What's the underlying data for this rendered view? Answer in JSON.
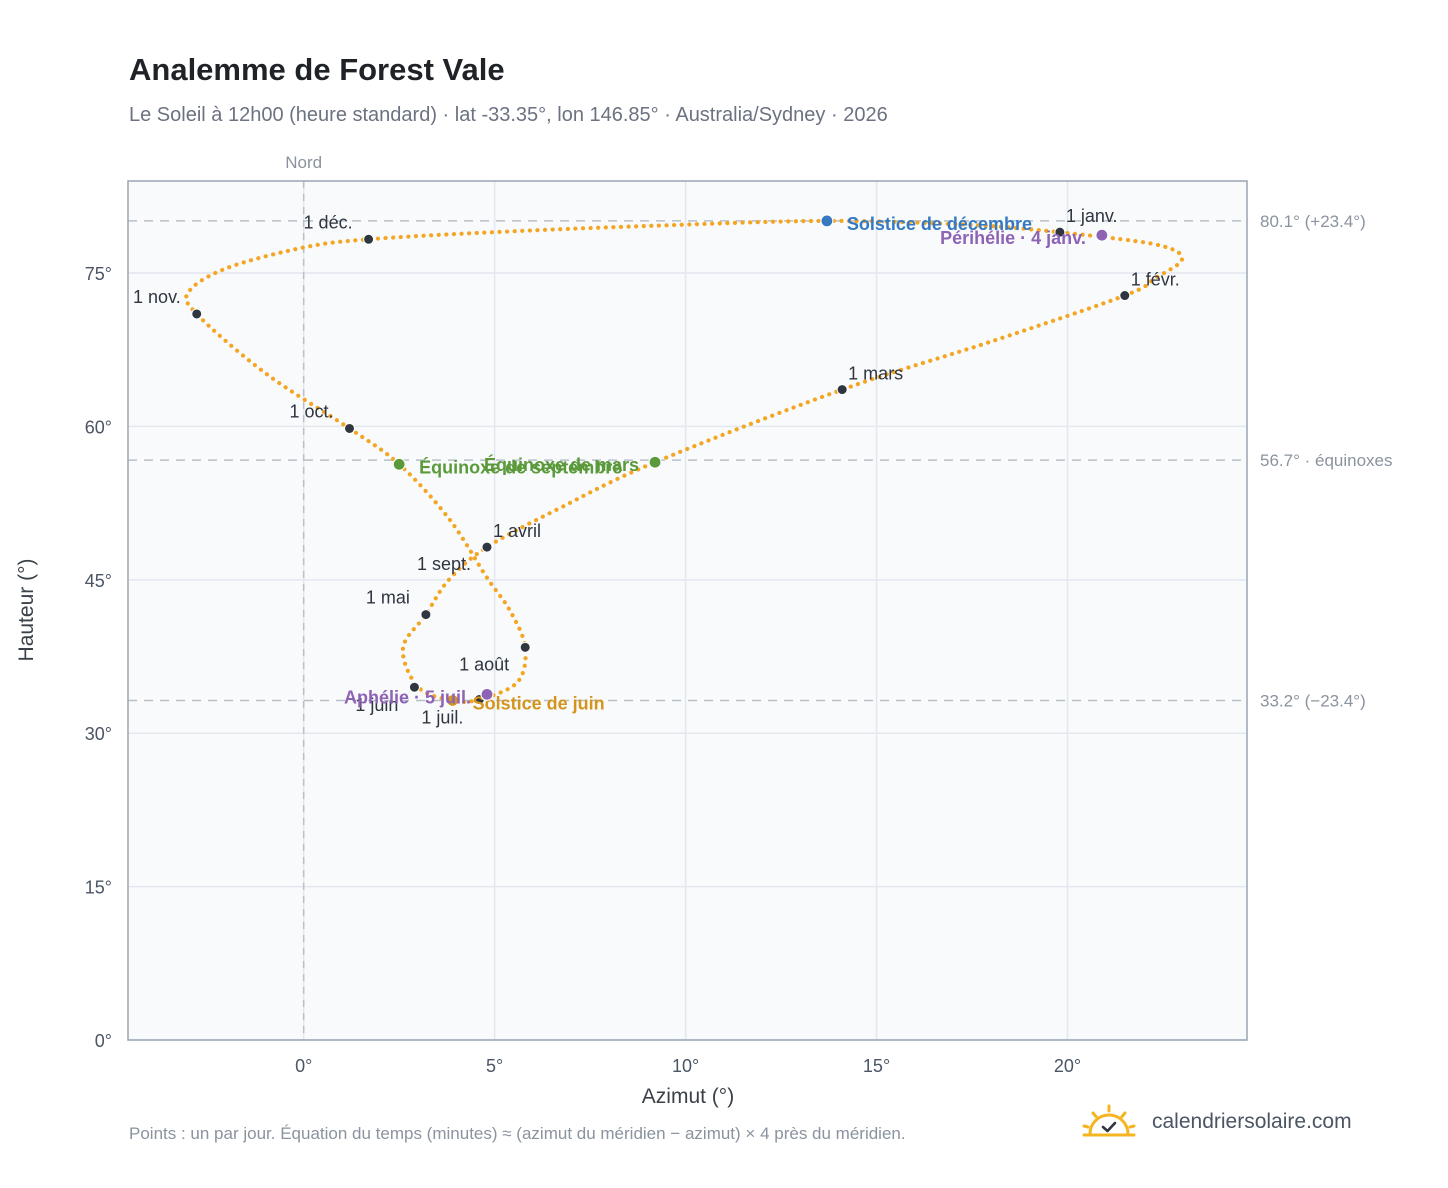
{
  "title": "Analemme de Forest Vale",
  "subtitle": "Le Soleil à 12h00 (heure standard) · lat -33.35°, lon 146.85° · Australia/Sydney · 2026",
  "footnote": "Points : un par jour. Équation du temps (minutes) ≈ (azimut du méridien − azimut) × 4 près du méridien.",
  "brand": {
    "name": "calendriersolaire.com",
    "logo_icon": "sun-check-icon"
  },
  "colors": {
    "path": "#f4a623",
    "month_marker": "#2f3640",
    "december_solstice": "#3579c2",
    "june_solstice": "#d4951c",
    "equinox": "#5a9a3a",
    "apsis": "#8e63b5",
    "reference_line": "#b8c0c8",
    "plot_background": "#f8fafc",
    "frame": "#9aa5b1"
  },
  "chart_data": {
    "type": "scatter",
    "xlabel": "Azimut (°)",
    "ylabel": "Hauteur (°)",
    "xlim": [
      -4.6,
      24.7
    ],
    "ylim": [
      0,
      84
    ],
    "x_ticks": [
      0,
      5,
      10,
      15,
      20
    ],
    "x_tick_labels": [
      "0°",
      "5°",
      "10°",
      "15°",
      "20°"
    ],
    "y_ticks": [
      0,
      15,
      30,
      45,
      60,
      75
    ],
    "y_tick_labels": [
      "0°",
      "15°",
      "30°",
      "45°",
      "60°",
      "75°"
    ],
    "grid": true,
    "north_line": {
      "x": 0,
      "label": "Nord"
    },
    "reference_lines": [
      {
        "y": 80.1,
        "label": "80.1° (+23.4°)"
      },
      {
        "y": 56.7,
        "label": "56.7° · équinoxes"
      },
      {
        "y": 33.2,
        "label": "33.2° (−23.4°)"
      }
    ],
    "analemma_path": [
      {
        "x": 19.8,
        "y": 79.0
      },
      {
        "x": 22.3,
        "y": 77.8
      },
      {
        "x": 23.0,
        "y": 76.4
      },
      {
        "x": 22.3,
        "y": 74.5
      },
      {
        "x": 21.5,
        "y": 72.8
      },
      {
        "x": 18.0,
        "y": 68.3
      },
      {
        "x": 14.1,
        "y": 63.6
      },
      {
        "x": 9.2,
        "y": 56.5
      },
      {
        "x": 6.7,
        "y": 52.0
      },
      {
        "x": 4.8,
        "y": 48.2
      },
      {
        "x": 3.8,
        "y": 45.0
      },
      {
        "x": 3.2,
        "y": 41.6
      },
      {
        "x": 2.6,
        "y": 38.3
      },
      {
        "x": 3.0,
        "y": 34.5
      },
      {
        "x": 3.9,
        "y": 33.2
      },
      {
        "x": 4.6,
        "y": 33.3
      },
      {
        "x": 5.6,
        "y": 35.0
      },
      {
        "x": 5.8,
        "y": 38.4
      },
      {
        "x": 5.4,
        "y": 42.0
      },
      {
        "x": 4.8,
        "y": 45.2
      },
      {
        "x": 3.8,
        "y": 51.0
      },
      {
        "x": 2.5,
        "y": 56.3
      },
      {
        "x": 1.2,
        "y": 59.8
      },
      {
        "x": -1.0,
        "y": 65.2
      },
      {
        "x": -2.8,
        "y": 71.0
      },
      {
        "x": -3.0,
        "y": 73.2
      },
      {
        "x": -2.0,
        "y": 75.5
      },
      {
        "x": 0.0,
        "y": 77.5
      },
      {
        "x": 1.7,
        "y": 78.3
      },
      {
        "x": 5.0,
        "y": 79.0
      },
      {
        "x": 9.0,
        "y": 79.6
      },
      {
        "x": 13.7,
        "y": 80.1
      },
      {
        "x": 17.5,
        "y": 79.7
      },
      {
        "x": 19.8,
        "y": 79.0
      }
    ],
    "month_markers": [
      {
        "label": "1 janv.",
        "x": 19.8,
        "y": 79.0,
        "anchor": "right"
      },
      {
        "label": "1 févr.",
        "x": 21.5,
        "y": 72.8,
        "anchor": "right"
      },
      {
        "label": "1 mars",
        "x": 14.1,
        "y": 63.6,
        "anchor": "right"
      },
      {
        "label": "1 avril",
        "x": 4.8,
        "y": 48.2,
        "anchor": "right"
      },
      {
        "label": "1 mai",
        "x": 3.2,
        "y": 41.6,
        "anchor": "left"
      },
      {
        "label": "1 juin",
        "x": 2.9,
        "y": 34.5,
        "anchor": "below-left"
      },
      {
        "label": "1 juil.",
        "x": 4.6,
        "y": 33.3,
        "anchor": "below-left"
      },
      {
        "label": "1 août",
        "x": 5.8,
        "y": 38.4,
        "anchor": "left-low"
      },
      {
        "label": "1 sept.",
        "x": 4.8,
        "y": 48.2,
        "anchor": "left-low"
      },
      {
        "label": "1 oct.",
        "x": 1.2,
        "y": 59.8,
        "anchor": "left"
      },
      {
        "label": "1 nov.",
        "x": -2.8,
        "y": 71.0,
        "anchor": "left"
      },
      {
        "label": "1 déc.",
        "x": 1.7,
        "y": 78.3,
        "anchor": "left"
      }
    ],
    "special_points": [
      {
        "label": "Solstice de décembre",
        "x": 13.7,
        "y": 80.1,
        "color": "#3579c2",
        "anchor": "right"
      },
      {
        "label": "Périhélie · 4 janv.",
        "x": 20.9,
        "y": 78.7,
        "color": "#8e63b5",
        "anchor": "left"
      },
      {
        "label": "Équinoxe de mars",
        "x": 9.2,
        "y": 56.5,
        "color": "#5a9a3a",
        "anchor": "left"
      },
      {
        "label": "Équinoxe de septembre",
        "x": 2.5,
        "y": 56.3,
        "color": "#5a9a3a",
        "anchor": "right"
      },
      {
        "label": "Solstice de juin",
        "x": 3.9,
        "y": 33.2,
        "color": "#d4951c",
        "anchor": "right"
      },
      {
        "label": "Aphélie · 5 juil.",
        "x": 4.8,
        "y": 33.8,
        "color": "#8e63b5",
        "anchor": "left"
      }
    ]
  }
}
